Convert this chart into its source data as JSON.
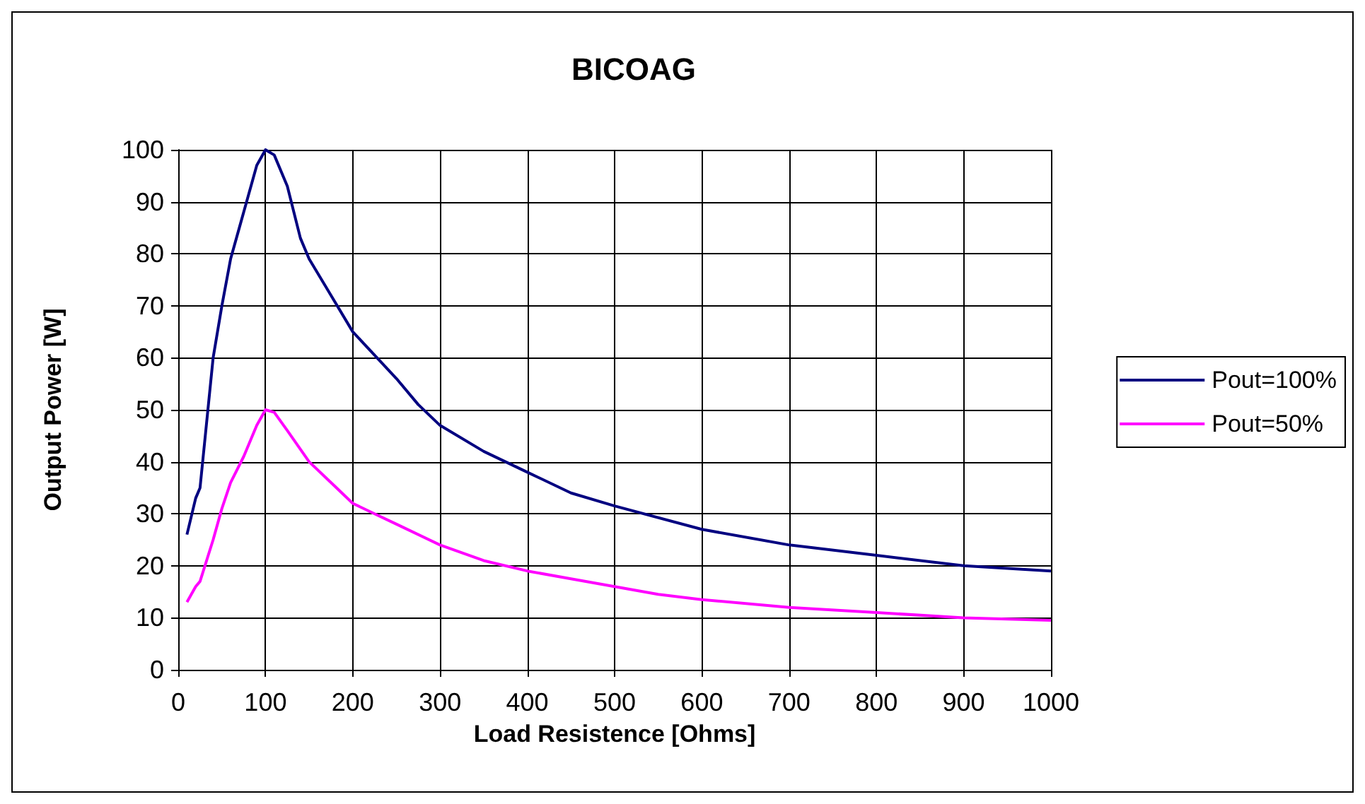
{
  "chart_data": {
    "type": "line",
    "title": "BICOAG",
    "xlabel": "Load Resistence [Ohms]",
    "ylabel": "Output Power [W]",
    "xlim": [
      0,
      1000
    ],
    "xticks": [
      0,
      100,
      200,
      300,
      400,
      500,
      600,
      700,
      800,
      900,
      1000
    ],
    "ylim": [
      0,
      100
    ],
    "yticks": [
      0,
      10,
      20,
      30,
      40,
      50,
      60,
      70,
      80,
      90,
      100
    ],
    "grid": true,
    "legend": "right",
    "marker": "none",
    "line_style": "solid",
    "series": [
      {
        "name": "Pout=100%",
        "color": "#000080",
        "x": [
          10,
          20,
          25,
          40,
          50,
          60,
          70,
          80,
          90,
          100,
          110,
          125,
          140,
          150,
          175,
          200,
          250,
          275,
          300,
          350,
          400,
          450,
          500,
          600,
          700,
          800,
          900,
          1000
        ],
        "values": [
          26,
          33,
          35,
          60,
          70,
          79,
          85,
          91,
          97,
          100,
          99,
          93,
          83,
          79,
          72,
          65,
          56,
          51,
          47,
          42,
          38,
          34,
          31.5,
          27,
          24,
          22,
          20,
          19
        ]
      },
      {
        "name": "Pout=50%",
        "color": "#ff00ff",
        "x": [
          10,
          20,
          25,
          40,
          50,
          60,
          75,
          90,
          100,
          110,
          125,
          150,
          175,
          200,
          225,
          250,
          300,
          350,
          400,
          450,
          500,
          550,
          600,
          700,
          800,
          900,
          1000
        ],
        "values": [
          13,
          16,
          17,
          25,
          31,
          36,
          41,
          47,
          50,
          49.5,
          46,
          40,
          36,
          32,
          30,
          28,
          24,
          21,
          19,
          17.5,
          16,
          14.5,
          13.5,
          12,
          11,
          10,
          9.5
        ]
      }
    ]
  }
}
